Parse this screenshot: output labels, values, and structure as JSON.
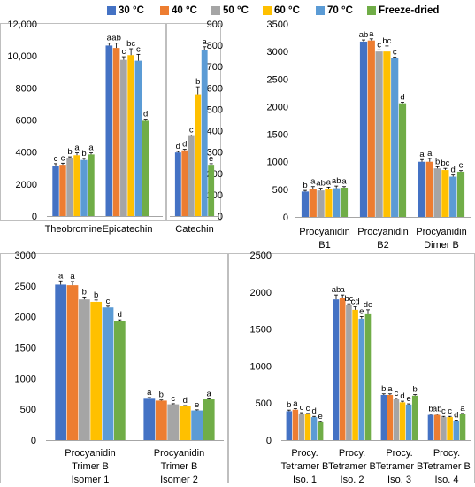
{
  "legend": {
    "items": [
      {
        "label": "30 °C",
        "color": "#4472C4"
      },
      {
        "label": "40 °C",
        "color": "#ED7D31"
      },
      {
        "label": "50 °C",
        "color": "#A5A5A5"
      },
      {
        "label": "60 °C",
        "color": "#FFC000"
      },
      {
        "label": "70 °C",
        "color": "#5B9BD5"
      },
      {
        "label": "Freeze-dried",
        "color": "#70AD47"
      }
    ]
  },
  "chart_data": [
    {
      "type": "bar",
      "ylim": [
        0,
        12000
      ],
      "yticks": [
        "0",
        "2000",
        "4000",
        "6000",
        "8000",
        "10,000",
        "12,000"
      ],
      "categories": [
        "Theobromine",
        "Epicatechin"
      ],
      "series": [
        {
          "name": "30 °C",
          "values": [
            3150,
            10650
          ],
          "errors": [
            120,
            150
          ],
          "letters": [
            "c",
            "a"
          ]
        },
        {
          "name": "40 °C",
          "values": [
            3200,
            10500
          ],
          "errors": [
            100,
            300
          ],
          "letters": [
            "c",
            "ab"
          ]
        },
        {
          "name": "50 °C",
          "values": [
            3600,
            9750
          ],
          "errors": [
            100,
            200
          ],
          "letters": [
            "b",
            "c"
          ]
        },
        {
          "name": "60 °C",
          "values": [
            3800,
            10050
          ],
          "errors": [
            150,
            400
          ],
          "letters": [
            "a",
            "bc"
          ]
        },
        {
          "name": "70 °C",
          "values": [
            3500,
            9700
          ],
          "errors": [
            100,
            400
          ],
          "letters": [
            "b",
            "c"
          ]
        },
        {
          "name": "Freeze-dried",
          "values": [
            3850,
            5950
          ],
          "errors": [
            100,
            100
          ],
          "letters": [
            "a",
            "d"
          ]
        }
      ],
      "grid": false
    },
    {
      "type": "bar",
      "ylim": [
        0,
        900
      ],
      "yticks": [
        "0",
        "100",
        "200",
        "300",
        "400",
        "500",
        "600",
        "700",
        "800",
        "900"
      ],
      "categories": [
        "Catechin"
      ],
      "series": [
        {
          "name": "30 °C",
          "values": [
            298
          ],
          "errors": [
            5
          ],
          "letters": [
            "d"
          ]
        },
        {
          "name": "40 °C",
          "values": [
            308
          ],
          "errors": [
            5
          ],
          "letters": [
            "d"
          ]
        },
        {
          "name": "50 °C",
          "values": [
            375
          ],
          "errors": [
            5
          ],
          "letters": [
            "c"
          ]
        },
        {
          "name": "60 °C",
          "values": [
            570
          ],
          "errors": [
            35
          ],
          "letters": [
            "b"
          ]
        },
        {
          "name": "70 °C",
          "values": [
            778
          ],
          "errors": [
            15
          ],
          "letters": [
            "a"
          ]
        },
        {
          "name": "Freeze-dried",
          "values": [
            240
          ],
          "errors": [
            5
          ],
          "letters": [
            "e"
          ]
        }
      ],
      "grid": false
    },
    {
      "type": "bar",
      "ylim": [
        0,
        3500
      ],
      "yticks": [
        "0",
        "500",
        "1000",
        "1500",
        "2000",
        "2500",
        "3000",
        "3500"
      ],
      "categories": [
        "Procyanidin\nB1",
        "Procyanidin\nB2",
        "Procyanidin\nDimer B"
      ],
      "series": [
        {
          "name": "30 °C",
          "values": [
            460,
            3180,
            1000
          ],
          "errors": [
            20,
            30,
            40
          ],
          "letters": [
            "b",
            "ab",
            "a"
          ]
        },
        {
          "name": "40 °C",
          "values": [
            510,
            3200,
            1000
          ],
          "errors": [
            40,
            30,
            60
          ],
          "letters": [
            "a",
            "a",
            "a"
          ]
        },
        {
          "name": "50 °C",
          "values": [
            480,
            3000,
            880
          ],
          "errors": [
            40,
            30,
            30
          ],
          "letters": [
            "ab",
            "c",
            "b"
          ]
        },
        {
          "name": "60 °C",
          "values": [
            510,
            3000,
            850
          ],
          "errors": [
            30,
            100,
            30
          ],
          "letters": [
            "a",
            "bc",
            "bc"
          ]
        },
        {
          "name": "70 °C",
          "values": [
            520,
            2880,
            730
          ],
          "errors": [
            40,
            20,
            30
          ],
          "letters": [
            "ab",
            "c",
            "d"
          ]
        },
        {
          "name": "Freeze-dried",
          "values": [
            530,
            2060,
            820
          ],
          "errors": [
            20,
            20,
            20
          ],
          "letters": [
            "a",
            "d",
            "c"
          ]
        }
      ],
      "grid": false
    },
    {
      "type": "bar",
      "ylim": [
        0,
        3000
      ],
      "yticks": [
        "0",
        "500",
        "1000",
        "1500",
        "2000",
        "2500",
        "3000"
      ],
      "categories": [
        "Procyanidin\nTrimer B\nIsomer 1",
        "Procyanidin\nTrimer B\nIsomer 2"
      ],
      "series": [
        {
          "name": "30 °C",
          "values": [
            2520,
            670
          ],
          "errors": [
            60,
            20
          ],
          "letters": [
            "a",
            "a"
          ]
        },
        {
          "name": "40 °C",
          "values": [
            2510,
            640
          ],
          "errors": [
            60,
            10
          ],
          "letters": [
            "a",
            "b"
          ]
        },
        {
          "name": "50 °C",
          "values": [
            2280,
            580
          ],
          "errors": [
            40,
            10
          ],
          "letters": [
            "b",
            "c"
          ]
        },
        {
          "name": "60 °C",
          "values": [
            2240,
            550
          ],
          "errors": [
            30,
            10
          ],
          "letters": [
            "b",
            "d"
          ]
        },
        {
          "name": "70 °C",
          "values": [
            2150,
            480
          ],
          "errors": [
            20,
            10
          ],
          "letters": [
            "c",
            "e"
          ]
        },
        {
          "name": "Freeze-dried",
          "values": [
            1930,
            660
          ],
          "errors": [
            20,
            10
          ],
          "letters": [
            "d",
            "a"
          ]
        }
      ],
      "grid": false
    },
    {
      "type": "bar",
      "ylim": [
        0,
        2500
      ],
      "yticks": [
        "0",
        "500",
        "1000",
        "1500",
        "2000",
        "2500"
      ],
      "categories": [
        "Procy.\nTetramer B\nIso. 1",
        "Procy.\nTetramer B\nIso. 2",
        "Procy.\nTetramer B\nIso. 3",
        "Procy.\nTetramer B\nIso. 4"
      ],
      "series": [
        {
          "name": "30 °C",
          "values": [
            390,
            1900,
            610,
            340
          ],
          "errors": [
            15,
            60,
            15,
            10
          ],
          "letters": [
            "b",
            "ab",
            "b",
            "b"
          ]
        },
        {
          "name": "40 °C",
          "values": [
            410,
            1920,
            610,
            340
          ],
          "errors": [
            15,
            40,
            15,
            10
          ],
          "letters": [
            "a",
            "a",
            "a",
            "ab"
          ]
        },
        {
          "name": "50 °C",
          "values": [
            360,
            1820,
            550,
            310
          ],
          "errors": [
            10,
            20,
            15,
            10
          ],
          "letters": [
            "c",
            "bc",
            "c",
            "c"
          ]
        },
        {
          "name": "60 °C",
          "values": [
            350,
            1760,
            510,
            310
          ],
          "errors": [
            10,
            40,
            15,
            10
          ],
          "letters": [
            "c",
            "cd",
            "d",
            "c"
          ]
        },
        {
          "name": "70 °C",
          "values": [
            310,
            1640,
            480,
            260
          ],
          "errors": [
            10,
            30,
            10,
            10
          ],
          "letters": [
            "d",
            "e",
            "e",
            "d"
          ]
        },
        {
          "name": "Freeze-dried",
          "values": [
            240,
            1700,
            600,
            350
          ],
          "errors": [
            10,
            60,
            15,
            10
          ],
          "letters": [
            "e",
            "de",
            "b",
            "a"
          ]
        }
      ],
      "grid": false
    }
  ]
}
